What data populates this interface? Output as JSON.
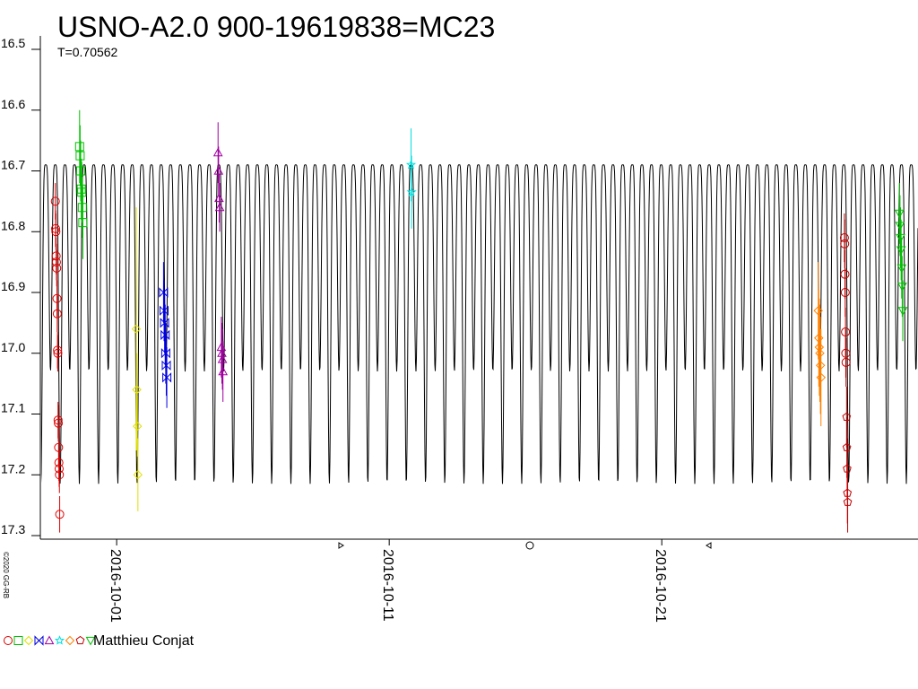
{
  "chart_data": {
    "type": "scatter",
    "title": "USNO-A2.0 900-19619838=MC23",
    "period": {
      "value": 0.70562,
      "label": "T=0.70562"
    },
    "credit": "©2020 GG-RB",
    "observer": "Matthieu Conjat",
    "reversed_y": true,
    "xlim": [
      2457659.7,
      2457691.9
    ],
    "xticks": [
      {
        "value": 2457662.5,
        "label": "2016-10-01"
      },
      {
        "value": 2457672.5,
        "label": "2016-10-11"
      },
      {
        "value": 2457682.5,
        "label": "2016-10-21"
      }
    ],
    "ylim": [
      16.5,
      17.3
    ],
    "yticks": [
      {
        "value": 16.5,
        "label": "16.5"
      },
      {
        "value": 16.6,
        "label": "16.6"
      },
      {
        "value": 16.7,
        "label": "16.7"
      },
      {
        "value": 16.8,
        "label": "16.8"
      },
      {
        "value": 16.9,
        "label": "16.9"
      },
      {
        "value": 17.0,
        "label": "17.0"
      },
      {
        "value": 17.1,
        "label": "17.1"
      },
      {
        "value": 17.2,
        "label": "17.2"
      },
      {
        "value": 17.3,
        "label": "17.3"
      }
    ],
    "model": {
      "max": 16.69,
      "primary_min": 17.215,
      "secondary_min": 17.03,
      "epoch": 2457659.72,
      "color": "#000000"
    },
    "series": [
      {
        "marker": "circle",
        "color": "#e00000",
        "x": [
          2457660.25,
          2457660.26,
          2457660.27,
          2457660.28,
          2457660.29,
          2457660.3,
          2457660.31,
          2457660.32,
          2457660.33,
          2457660.34,
          2457660.35,
          2457660.36,
          2457660.37,
          2457660.38,
          2457660.39,
          2457660.4,
          2457660.41
        ],
        "values": [
          16.75,
          16.795,
          16.8,
          16.84,
          16.85,
          16.86,
          16.91,
          16.935,
          16.995,
          17.0,
          17.11,
          17.115,
          17.155,
          17.18,
          17.19,
          17.2,
          17.265
        ],
        "errors": [
          0.03,
          0.03,
          0.03,
          0.03,
          0.03,
          0.03,
          0.03,
          0.03,
          0.03,
          0.03,
          0.03,
          0.03,
          0.03,
          0.03,
          0.03,
          0.03,
          0.03
        ]
      },
      {
        "marker": "square",
        "color": "#00c000",
        "x": [
          2457661.14,
          2457661.16,
          2457661.18,
          2457661.2,
          2457661.22,
          2457661.24,
          2457661.26
        ],
        "values": [
          16.66,
          16.675,
          16.7,
          16.73,
          16.735,
          16.76,
          16.785
        ],
        "errors": [
          0.06,
          0.05,
          0.05,
          0.05,
          0.05,
          0.05,
          0.06
        ]
      },
      {
        "marker": "diamond",
        "color": "#e0e000",
        "x": [
          2457663.22,
          2457663.24,
          2457663.26,
          2457663.28
        ],
        "values": [
          16.96,
          17.06,
          17.12,
          17.2
        ],
        "errors": [
          0.2,
          0.06,
          0.05,
          0.06
        ]
      },
      {
        "marker": "bowtie",
        "color": "#0000e0",
        "x": [
          2457664.22,
          2457664.24,
          2457664.26,
          2457664.28,
          2457664.3,
          2457664.32,
          2457664.34
        ],
        "values": [
          16.9,
          16.93,
          16.95,
          16.97,
          17.0,
          17.02,
          17.04
        ],
        "errors": [
          0.05,
          0.05,
          0.05,
          0.05,
          0.05,
          0.05,
          0.05
        ]
      },
      {
        "marker": "triangle",
        "color": "#a000a0",
        "x": [
          2457666.22,
          2457666.24,
          2457666.26,
          2457666.28,
          2457666.34,
          2457666.36,
          2457666.38,
          2457666.4
        ],
        "values": [
          16.67,
          16.7,
          16.745,
          16.76,
          16.99,
          17.0,
          17.01,
          17.03
        ],
        "errors": [
          0.05,
          0.04,
          0.04,
          0.04,
          0.05,
          0.05,
          0.05,
          0.05
        ]
      },
      {
        "marker": "star",
        "color": "#00e0e0",
        "x": [
          2457673.3,
          2457673.32
        ],
        "values": [
          16.69,
          16.735
        ],
        "errors": [
          0.06,
          0.06
        ]
      },
      {
        "marker": "diamond",
        "color": "#ff8000",
        "x": [
          2457688.24,
          2457688.26,
          2457688.28,
          2457688.3,
          2457688.32,
          2457688.34
        ],
        "values": [
          16.93,
          16.975,
          16.99,
          17.0,
          17.02,
          17.04
        ],
        "errors": [
          0.08,
          0.08,
          0.08,
          0.08,
          0.08,
          0.08
        ]
      },
      {
        "marker": "circle",
        "color": "#c00000",
        "x": [
          2457689.2,
          2457689.21,
          2457689.22,
          2457689.23,
          2457689.24,
          2457689.25,
          2457689.26
        ],
        "values": [
          16.81,
          16.82,
          16.87,
          16.9,
          16.965,
          17.0,
          17.015
        ],
        "errors": [
          0.04,
          0.04,
          0.04,
          0.04,
          0.04,
          0.04,
          0.04
        ]
      },
      {
        "marker": "pentagon",
        "color": "#c00000",
        "x": [
          2457689.28,
          2457689.29,
          2457689.3,
          2457689.31,
          2457689.32
        ],
        "values": [
          17.105,
          17.155,
          17.19,
          17.23,
          17.245
        ],
        "errors": [
          0.05,
          0.05,
          0.05,
          0.05,
          0.05
        ]
      },
      {
        "marker": "triangle-down",
        "color": "#00c000",
        "x": [
          2457691.22,
          2457691.24,
          2457691.26,
          2457691.28,
          2457691.3,
          2457691.32,
          2457691.34
        ],
        "values": [
          16.77,
          16.79,
          16.81,
          16.83,
          16.86,
          16.89,
          16.93
        ],
        "errors": [
          0.05,
          0.05,
          0.05,
          0.05,
          0.05,
          0.05,
          0.05
        ]
      }
    ]
  }
}
